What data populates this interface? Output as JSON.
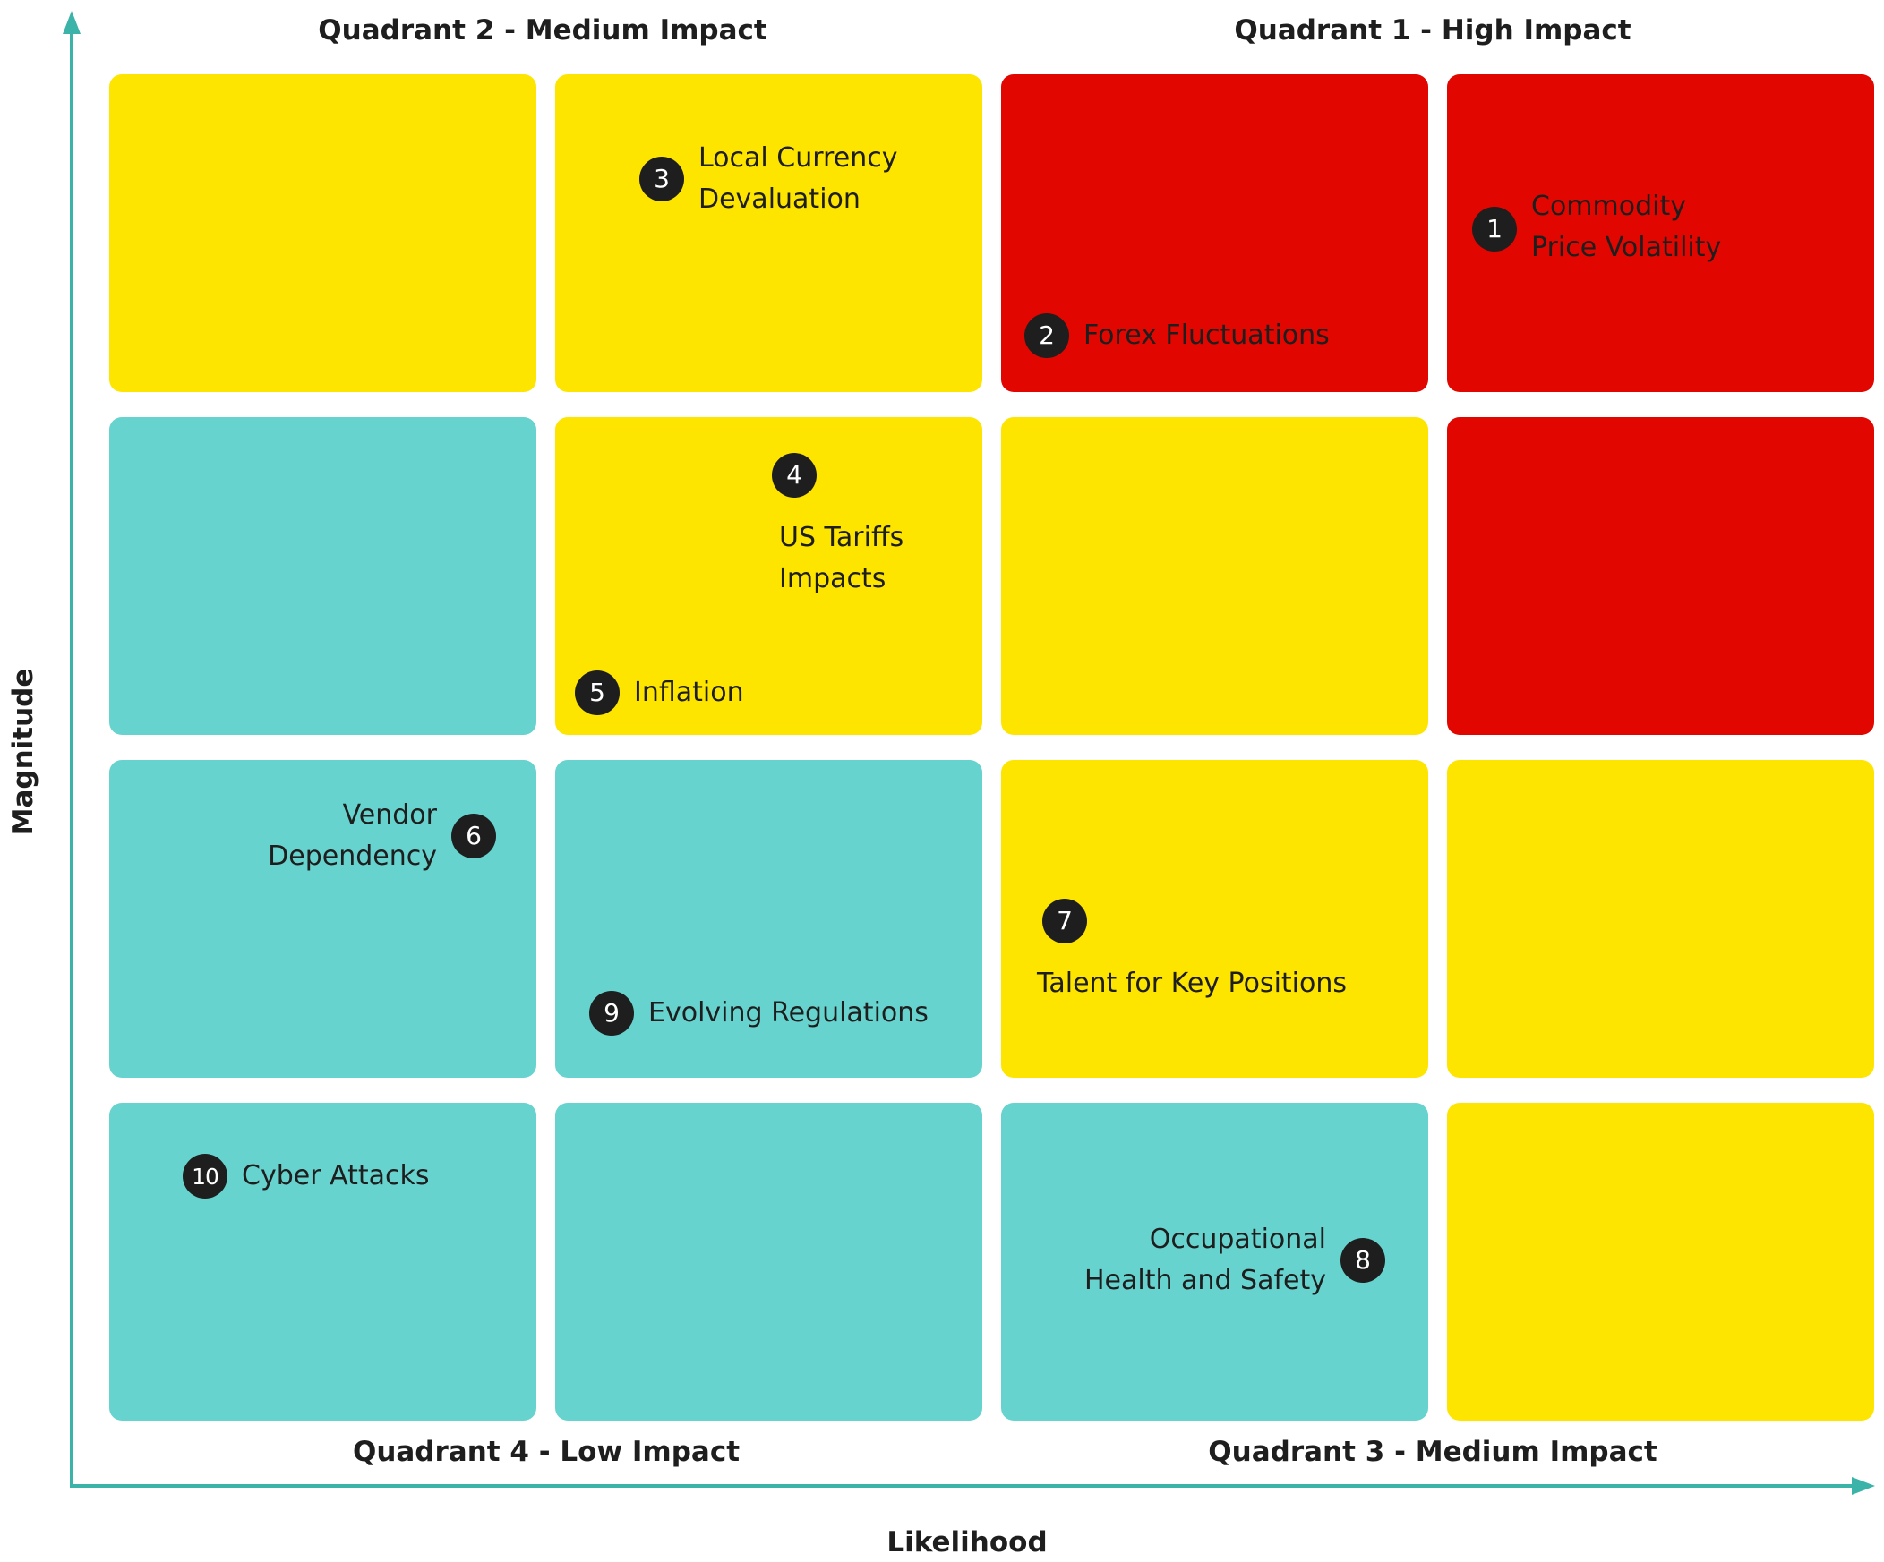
{
  "axes": {
    "y_label": "Magnitude",
    "x_label": "Likelihood"
  },
  "quadrants": {
    "q2": "Quadrant 2 - Medium Impact",
    "q1": "Quadrant 1 - High Impact",
    "q4": "Quadrant 4 - Low Impact",
    "q3": "Quadrant 3 - Medium Impact"
  },
  "grid": {
    "rows": 4,
    "columns": 4,
    "colors": {
      "red": "#e10600",
      "yellow": "#fee500",
      "teal": "#67d3cf"
    },
    "cells": [
      [
        "yellow",
        "yellow",
        "red",
        "red"
      ],
      [
        "teal",
        "yellow",
        "yellow",
        "red"
      ],
      [
        "teal",
        "teal",
        "yellow",
        "yellow"
      ],
      [
        "teal",
        "teal",
        "teal",
        "yellow"
      ]
    ]
  },
  "risks": [
    {
      "number": "1",
      "label": "Commodity\nPrice Volatility"
    },
    {
      "number": "2",
      "label": "Forex Fluctuations"
    },
    {
      "number": "3",
      "label": "Local Currency\nDevaluation"
    },
    {
      "number": "4",
      "label": "US Tariffs\nImpacts"
    },
    {
      "number": "5",
      "label": "Inflation"
    },
    {
      "number": "6",
      "label": "Vendor\nDependency"
    },
    {
      "number": "7",
      "label": "Talent for Key Positions"
    },
    {
      "number": "8",
      "label": "Occupational\nHealth and Safety"
    },
    {
      "number": "9",
      "label": "Evolving Regulations"
    },
    {
      "number": "10",
      "label": "Cyber Attacks"
    }
  ]
}
